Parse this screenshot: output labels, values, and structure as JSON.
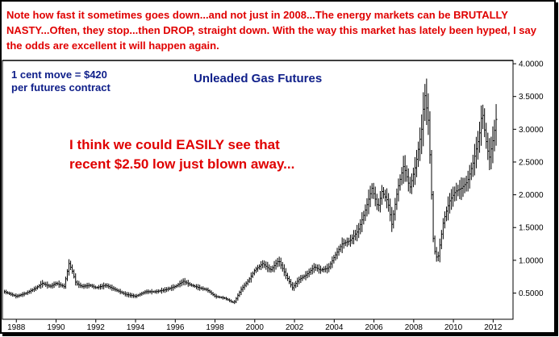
{
  "headline": "Note how fast it sometimes goes down...and not just in 2008...The energy markets can be BRUTALLY NASTY...Often, they stop...then DROP, straight down. With the way this market has lately been hyped, I say the odds are excellent it will happen again.",
  "contract_note": {
    "line1": "1 cent move = $420",
    "line2": "per futures contract"
  },
  "annotation": {
    "line1": "I think we could EASILY see that",
    "line2": "recent $2.50 low just blown away..."
  },
  "colors": {
    "headline": "#e00000",
    "note": "#10208a",
    "bars": "#000000"
  },
  "chart_data": {
    "type": "line",
    "style": "price-bars",
    "title": "Unleaded Gas Futures",
    "xlabel": "",
    "ylabel": "",
    "x_ticks": [
      "1988",
      "1990",
      "1992",
      "1994",
      "1996",
      "1998",
      "2000",
      "2002",
      "2004",
      "2006",
      "2008",
      "2010",
      "2012"
    ],
    "y_ticks": [
      "0.5000",
      "1.0000",
      "1.5000",
      "2.0000",
      "2.5000",
      "3.0000",
      "3.5000",
      "4.0000"
    ],
    "xlim": [
      1987.3,
      2013.0
    ],
    "ylim": [
      0.1,
      4.05
    ],
    "grid": false,
    "series": [
      {
        "x": [
          1987.4,
          1988.0,
          1988.5,
          1989.0,
          1989.3,
          1989.7,
          1990.0,
          1990.4,
          1990.65,
          1990.8,
          1991.0,
          1991.3,
          1991.7,
          1992.0,
          1992.5,
          1993.0,
          1993.5,
          1994.0,
          1994.5,
          1995.0,
          1995.5,
          1996.0,
          1996.4,
          1996.8,
          1997.2,
          1997.6,
          1998.0,
          1998.5,
          1998.95,
          1999.3,
          1999.7,
          2000.0,
          2000.4,
          2000.8,
          2001.2,
          2001.6,
          2001.9,
          2002.2,
          2002.6,
          2003.0,
          2003.3,
          2003.7,
          2004.0,
          2004.4,
          2004.8,
          2005.2,
          2005.5,
          2005.7,
          2005.9,
          2006.2,
          2006.4,
          2006.7,
          2006.9,
          2007.2,
          2007.5,
          2007.8,
          2008.1,
          2008.4,
          2008.55,
          2008.75,
          2008.9,
          2009.0,
          2009.2,
          2009.5,
          2009.8,
          2010.1,
          2010.4,
          2010.7,
          2011.0,
          2011.3,
          2011.45,
          2011.6,
          2011.8,
          2012.0,
          2012.2
        ],
        "values": [
          0.52,
          0.45,
          0.5,
          0.58,
          0.65,
          0.6,
          0.65,
          0.6,
          0.95,
          0.85,
          0.65,
          0.6,
          0.62,
          0.58,
          0.62,
          0.55,
          0.48,
          0.45,
          0.52,
          0.52,
          0.55,
          0.6,
          0.68,
          0.62,
          0.58,
          0.55,
          0.45,
          0.42,
          0.35,
          0.55,
          0.7,
          0.85,
          0.95,
          0.85,
          1.0,
          0.75,
          0.58,
          0.7,
          0.78,
          0.9,
          0.85,
          0.88,
          1.05,
          1.25,
          1.3,
          1.45,
          1.7,
          1.9,
          2.1,
          1.8,
          2.05,
          1.9,
          1.55,
          2.1,
          2.45,
          2.1,
          2.45,
          3.0,
          3.55,
          3.1,
          2.0,
          1.2,
          1.0,
          1.6,
          1.9,
          2.05,
          2.1,
          2.2,
          2.5,
          2.9,
          3.3,
          2.9,
          2.55,
          2.85,
          3.25
        ]
      }
    ]
  }
}
